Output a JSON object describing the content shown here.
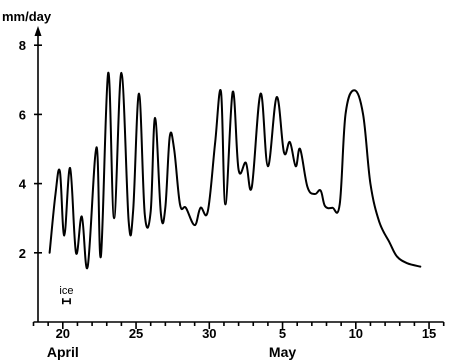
{
  "chart_data": {
    "type": "line",
    "ylabel": "mm/day",
    "ylim": [
      0,
      8
    ],
    "yticks": [
      2,
      4,
      6,
      8
    ],
    "xticks": [
      {
        "date": "20 April",
        "label": "20"
      },
      {
        "date": "25 April",
        "label": "25"
      },
      {
        "date": "30 April",
        "label": "30"
      },
      {
        "date": "5 May",
        "label": "5"
      },
      {
        "date": "10 May",
        "label": "10"
      },
      {
        "date": "15 May",
        "label": "15"
      }
    ],
    "month_labels": [
      {
        "date": "20 April",
        "label": "April"
      },
      {
        "date": "5 May",
        "label": "May"
      }
    ],
    "annotations": [
      {
        "text": "ice",
        "x_start": "20 April",
        "x_end": "20.5 April",
        "y": 0.6
      }
    ],
    "series": [
      {
        "values": [
          {
            "x": "19.1 April",
            "y": 2.0
          },
          {
            "x": "19.5 April",
            "y": 3.7
          },
          {
            "x": "19.8 April",
            "y": 4.35
          },
          {
            "x": "20.1 April",
            "y": 2.5
          },
          {
            "x": "20.5 April",
            "y": 4.45
          },
          {
            "x": "20.9 April",
            "y": 2.0
          },
          {
            "x": "21.3 April",
            "y": 3.05
          },
          {
            "x": "21.7 April",
            "y": 1.6
          },
          {
            "x": "22.3 April",
            "y": 5.05
          },
          {
            "x": "22.6 April",
            "y": 1.9
          },
          {
            "x": "23.1 April",
            "y": 7.2
          },
          {
            "x": "23.5 April",
            "y": 3.0
          },
          {
            "x": "24.0 April",
            "y": 7.2
          },
          {
            "x": "24.5 April",
            "y": 2.9
          },
          {
            "x": "24.8 April",
            "y": 3.2
          },
          {
            "x": "25.2 April",
            "y": 6.6
          },
          {
            "x": "25.6 April",
            "y": 3.1
          },
          {
            "x": "26.0 April",
            "y": 3.2
          },
          {
            "x": "26.3 April",
            "y": 5.9
          },
          {
            "x": "26.7 April",
            "y": 3.1
          },
          {
            "x": "27.0 April",
            "y": 3.3
          },
          {
            "x": "27.3 April",
            "y": 5.35
          },
          {
            "x": "27.6 April",
            "y": 5.0
          },
          {
            "x": "28.0 April",
            "y": 3.4
          },
          {
            "x": "28.4 April",
            "y": 3.3
          },
          {
            "x": "29.0 April",
            "y": 2.8
          },
          {
            "x": "29.4 April",
            "y": 3.3
          },
          {
            "x": "29.9 April",
            "y": 3.2
          },
          {
            "x": "30.4 April",
            "y": 5.2
          },
          {
            "x": "30.8 April",
            "y": 6.65
          },
          {
            "x": "1.1 May",
            "y": 3.4
          },
          {
            "x": "1.6 May",
            "y": 6.65
          },
          {
            "x": "2.0 May",
            "y": 4.4
          },
          {
            "x": "2.5 May",
            "y": 4.6
          },
          {
            "x": "2.9 May",
            "y": 3.9
          },
          {
            "x": "3.5 May",
            "y": 6.6
          },
          {
            "x": "4.0 May",
            "y": 4.5
          },
          {
            "x": "4.6 May",
            "y": 6.5
          },
          {
            "x": "5.1 May",
            "y": 4.9
          },
          {
            "x": "5.5 May",
            "y": 5.2
          },
          {
            "x": "5.9 May",
            "y": 4.5
          },
          {
            "x": "6.2 May",
            "y": 5.0
          },
          {
            "x": "6.7 May",
            "y": 3.9
          },
          {
            "x": "7.2 May",
            "y": 3.7
          },
          {
            "x": "7.6 May",
            "y": 3.8
          },
          {
            "x": "7.9 May",
            "y": 3.35
          },
          {
            "x": "8.4 May",
            "y": 3.3
          },
          {
            "x": "8.9 May",
            "y": 3.4
          },
          {
            "x": "9.3 May",
            "y": 6.0
          },
          {
            "x": "9.9 May",
            "y": 6.7
          },
          {
            "x": "10.5 May",
            "y": 6.0
          },
          {
            "x": "11.0 May",
            "y": 4.0
          },
          {
            "x": "11.6 May",
            "y": 2.9
          },
          {
            "x": "12.3 May",
            "y": 2.3
          },
          {
            "x": "12.8 May",
            "y": 1.9
          },
          {
            "x": "13.5 May",
            "y": 1.7
          },
          {
            "x": "14.4 May",
            "y": 1.6
          }
        ]
      }
    ]
  }
}
